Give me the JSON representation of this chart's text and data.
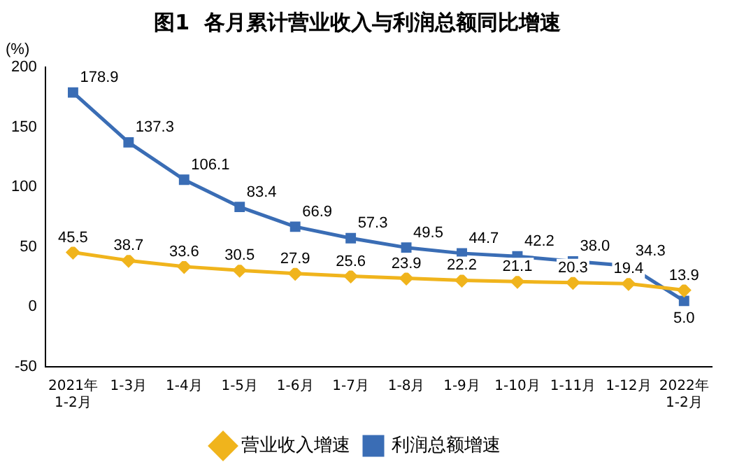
{
  "chart_data": {
    "type": "line",
    "title": "图1  各月累计营业收入与利润总额同比增速",
    "ylabel": "(%)",
    "categories": [
      "2021年\n1-2月",
      "1-3月",
      "1-4月",
      "1-5月",
      "1-6月",
      "1-7月",
      "1-8月",
      "1-9月",
      "1-10月",
      "1-11月",
      "1-12月",
      "2022年\n1-2月"
    ],
    "series": [
      {
        "name": "营业收入增速",
        "color": "#f0b41c",
        "marker": "diamond",
        "values": [
          45.5,
          38.7,
          33.6,
          30.5,
          27.9,
          25.6,
          23.9,
          22.2,
          21.1,
          20.3,
          19.4,
          13.9
        ],
        "value_labels": [
          "45.5",
          "38.7",
          "33.6",
          "30.5",
          "27.9",
          "25.6",
          "23.9",
          "22.2",
          "21.1",
          "20.3",
          "19.4",
          "13.9"
        ]
      },
      {
        "name": "利润总额增速",
        "color": "#3a6db5",
        "marker": "square",
        "values": [
          178.9,
          137.3,
          106.1,
          83.4,
          66.9,
          57.3,
          49.5,
          44.7,
          42.2,
          38.0,
          34.3,
          5.0
        ],
        "value_labels": [
          "178.9",
          "137.3",
          "106.1",
          "83.4",
          "66.9",
          "57.3",
          "49.5",
          "44.7",
          "42.2",
          "38.0",
          "34.3",
          "5.0"
        ]
      }
    ],
    "ylim": [
      -50,
      200
    ],
    "yticks": [
      -50,
      0,
      50,
      100,
      150,
      200
    ],
    "grid": false,
    "legend": "bottom"
  }
}
